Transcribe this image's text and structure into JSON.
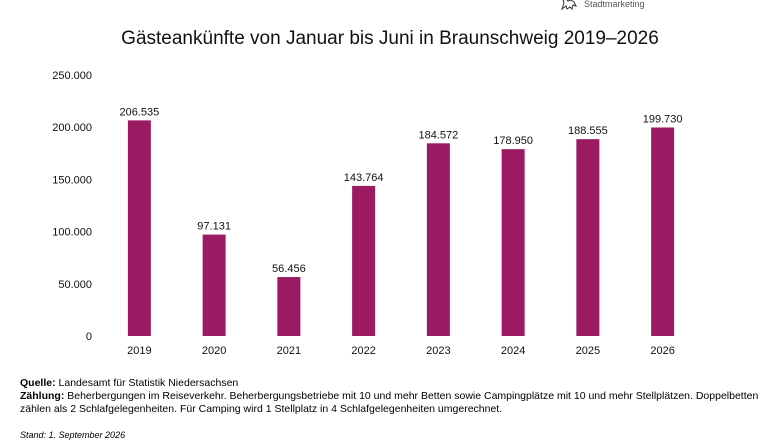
{
  "logo": {
    "brand_text": "Stadtmarketing",
    "icon": "lion-icon"
  },
  "chart_data": {
    "type": "bar",
    "title": "Gästeankünfte von Januar bis Juni in Braunschweig 2019–2026",
    "categories": [
      "2019",
      "2020",
      "2021",
      "2022",
      "2023",
      "2024",
      "2025",
      "2026"
    ],
    "values": [
      206535,
      97131,
      56456,
      143764,
      184572,
      178950,
      188555,
      199730
    ],
    "data_labels": [
      "206.535",
      "97.131",
      "56.456",
      "143.764",
      "184.572",
      "178.950",
      "188.555",
      "199.730"
    ],
    "yticks": [
      0,
      50000,
      100000,
      150000,
      200000,
      250000
    ],
    "ytick_labels": [
      "0",
      "50.000",
      "100.000",
      "150.000",
      "200.000",
      "250.000"
    ],
    "ylim": [
      0,
      250000
    ],
    "bar_color": "#9B1B63",
    "grid": false,
    "legend": "none"
  },
  "notes": {
    "quelle_label": "Quelle:",
    "quelle_text": " Landesamt für Statistik Niedersachsen",
    "zaehlung_label": "Zählung:",
    "zaehlung_text": " Beherbergungen im Reiseverkehr. Beherbergungsbetriebe mit 10 und mehr Betten sowie Campingplätze mit 10 und mehr Stellplätzen. Doppelbetten zählen als 2 Schlafgelegenheiten. Für Camping wird 1 Stellplatz in 4 Schlafgelegenheiten umgerechnet.",
    "stand": "Stand: 1. September 2026"
  }
}
